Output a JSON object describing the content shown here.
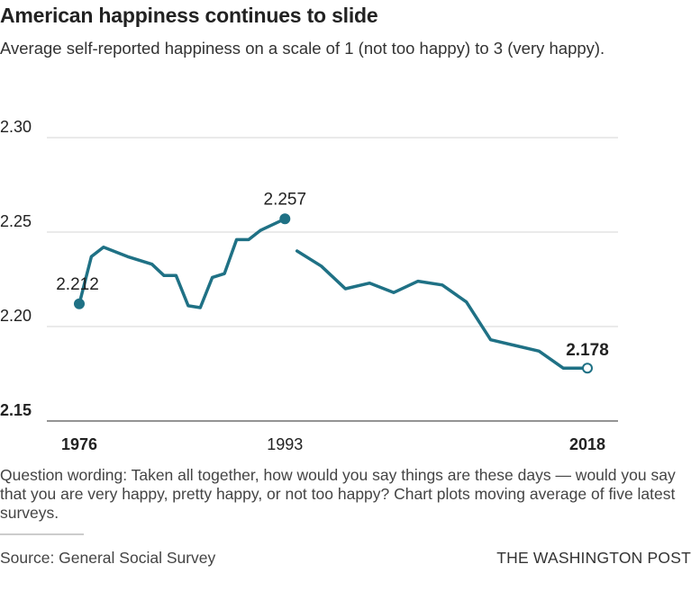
{
  "header": {
    "title": "American happiness continues to slide",
    "subtitle": "Average self-reported happiness on a scale of 1 (not too happy) to 3 (very happy)."
  },
  "footer": {
    "note": "Question wording: Taken all together, how would you say things are these days — would you say that you are very happy, pretty happy, or not too happy? Chart plots moving average of five latest surveys.",
    "source": "Source: General Social Survey",
    "credit": "THE WASHINGTON POST"
  },
  "colors": {
    "line": "#1f7185",
    "grid": "#d4d4d4",
    "text": "#222222"
  },
  "chart_data": {
    "type": "line",
    "x_ticks": [
      "1976",
      "1993",
      "2018"
    ],
    "y_ticks": [
      "2.30",
      "2.25",
      "2.20",
      "2.15"
    ],
    "ylim": [
      2.15,
      2.3
    ],
    "xlim": [
      1976,
      2018
    ],
    "grid": true,
    "series": [
      {
        "x": [
          1976,
          1977,
          1978,
          1980,
          1982,
          1983,
          1984,
          1985,
          1986,
          1987,
          1988,
          1989,
          1990,
          1991,
          1993
        ],
        "y": [
          2.212,
          2.237,
          2.242,
          2.237,
          2.233,
          2.227,
          2.227,
          2.211,
          2.21,
          2.226,
          2.228,
          2.246,
          2.246,
          2.251,
          2.257
        ]
      },
      {
        "x": [
          1994,
          1996,
          1998,
          2000,
          2002,
          2004,
          2006,
          2008,
          2010,
          2012,
          2014,
          2016,
          2018
        ],
        "y": [
          2.24,
          2.232,
          2.22,
          2.223,
          2.218,
          2.224,
          2.222,
          2.213,
          2.193,
          2.19,
          2.187,
          2.178,
          2.178
        ]
      }
    ],
    "annotations": [
      {
        "x": 1976,
        "y": 2.212,
        "label": "2.212"
      },
      {
        "x": 1993,
        "y": 2.257,
        "label": "2.257"
      },
      {
        "x": 2018,
        "y": 2.178,
        "label": "2.178"
      }
    ]
  }
}
